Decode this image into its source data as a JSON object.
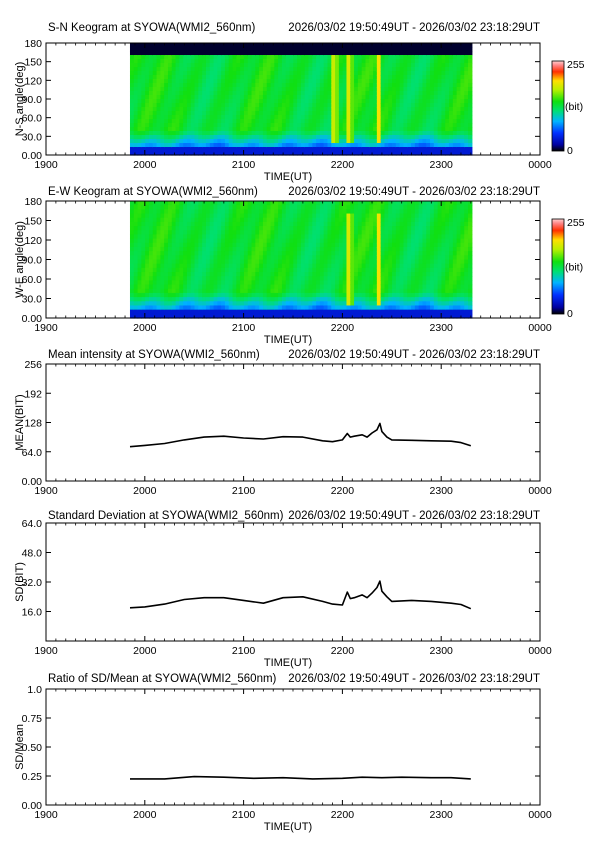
{
  "chart_data": [
    {
      "type": "heatmap",
      "title": "S-N Keogram at SYOWA(WMI2_560nm)",
      "subtitle": "2026/03/02 19:50:49UT - 2026/03/02 23:18:29UT",
      "xlabel": "TIME(UT)",
      "ylabel": "N-S angle(deg)",
      "xticks": [
        "1900",
        "2000",
        "2100",
        "2200",
        "2300",
        "0000"
      ],
      "yticks": [
        "0.00",
        "30.0",
        "60.0",
        "90.0",
        "120",
        "150",
        "180"
      ],
      "ylim": [
        0,
        180
      ],
      "colorbar": {
        "max_label": "255",
        "unit_label": "(bit)",
        "min_label": "0"
      },
      "data_start_hour": 19.85,
      "data_end_hour": 23.31,
      "bright_features_hour": [
        21.92,
        22.07,
        22.37
      ]
    },
    {
      "type": "heatmap",
      "title": "E-W Keogram at SYOWA(WMI2_560nm)",
      "subtitle": "2026/03/02 19:50:49UT - 2026/03/02 23:18:29UT",
      "xlabel": "TIME(UT)",
      "ylabel": "W-E angle(deg)",
      "xticks": [
        "1900",
        "2000",
        "2100",
        "2200",
        "2300",
        "0000"
      ],
      "yticks": [
        "0.00",
        "30.0",
        "60.0",
        "90.0",
        "120",
        "150",
        "180"
      ],
      "ylim": [
        0,
        180
      ],
      "colorbar": {
        "max_label": "255",
        "unit_label": "(bit)",
        "min_label": "0"
      },
      "data_start_hour": 19.85,
      "data_end_hour": 23.31,
      "bright_features_hour": [
        22.07,
        22.37
      ]
    },
    {
      "type": "line",
      "title": "Mean intensity at SYOWA(WMI2_560nm)",
      "subtitle": "2026/03/02 19:50:49UT - 2026/03/02 23:18:29UT",
      "xlabel": "",
      "ylabel": "MEAN(BIT)",
      "xticks": [
        "1900",
        "2000",
        "2100",
        "2200",
        "2300",
        "0000"
      ],
      "yticks": [
        "0.00",
        "64.0",
        "128",
        "192",
        "256"
      ],
      "ylim": [
        0,
        256
      ],
      "x": [
        19.85,
        20.0,
        20.2,
        20.4,
        20.6,
        20.8,
        21.0,
        21.2,
        21.4,
        21.6,
        21.8,
        21.9,
        22.0,
        22.05,
        22.08,
        22.12,
        22.2,
        22.25,
        22.3,
        22.35,
        22.38,
        22.4,
        22.45,
        22.5,
        22.7,
        22.9,
        23.1,
        23.2,
        23.3
      ],
      "y": [
        75,
        78,
        82,
        90,
        96,
        98,
        94,
        92,
        97,
        96,
        88,
        86,
        90,
        104,
        96,
        98,
        101,
        96,
        105,
        112,
        126,
        108,
        96,
        90,
        89,
        88,
        87,
        84,
        77
      ]
    },
    {
      "type": "line",
      "title": "Standard Deviation at SYOWA(WMI2_560nm)",
      "subtitle": "2026/03/02 19:50:49UT - 2026/03/02 23:18:29UT",
      "xlabel": "TIME(UT)",
      "ylabel": "SD(BIT)",
      "xticks": [
        "1900",
        "2000",
        "2100",
        "2200",
        "2300",
        "0000"
      ],
      "yticks": [
        "16.0",
        "32.0",
        "48.0",
        "64.0"
      ],
      "ylim": [
        0,
        64
      ],
      "x": [
        19.85,
        20.0,
        20.2,
        20.4,
        20.6,
        20.8,
        21.0,
        21.2,
        21.4,
        21.6,
        21.8,
        21.9,
        22.0,
        22.05,
        22.08,
        22.12,
        22.2,
        22.25,
        22.3,
        22.35,
        22.38,
        22.4,
        22.45,
        22.5,
        22.7,
        22.9,
        23.1,
        23.2,
        23.3
      ],
      "y": [
        18,
        18.5,
        20,
        22.5,
        23.5,
        23.5,
        22,
        20.5,
        23.5,
        24,
        21.5,
        20,
        19.5,
        26.5,
        23,
        23.5,
        25,
        23.5,
        26,
        29,
        32.5,
        27,
        24,
        21.5,
        22,
        21.5,
        20.5,
        19.8,
        17.5
      ]
    },
    {
      "type": "line",
      "title": "Ratio of SD/Mean at SYOWA(WMI2_560nm)",
      "subtitle": "2026/03/02 19:50:49UT - 2026/03/02 23:18:29UT",
      "xlabel": "TIME(UT)",
      "ylabel": "SD/Mean",
      "xticks": [
        "1900",
        "2000",
        "2100",
        "2200",
        "2300",
        "0000"
      ],
      "yticks": [
        "0.00",
        "0.25",
        "0.50",
        "0.75",
        "1.0"
      ],
      "ylim": [
        0,
        1
      ],
      "x": [
        19.85,
        20.2,
        20.5,
        20.8,
        21.1,
        21.4,
        21.7,
        22.0,
        22.2,
        22.4,
        22.6,
        22.9,
        23.1,
        23.3
      ],
      "y": [
        0.225,
        0.225,
        0.245,
        0.24,
        0.23,
        0.235,
        0.225,
        0.23,
        0.24,
        0.235,
        0.24,
        0.235,
        0.235,
        0.225
      ]
    }
  ]
}
